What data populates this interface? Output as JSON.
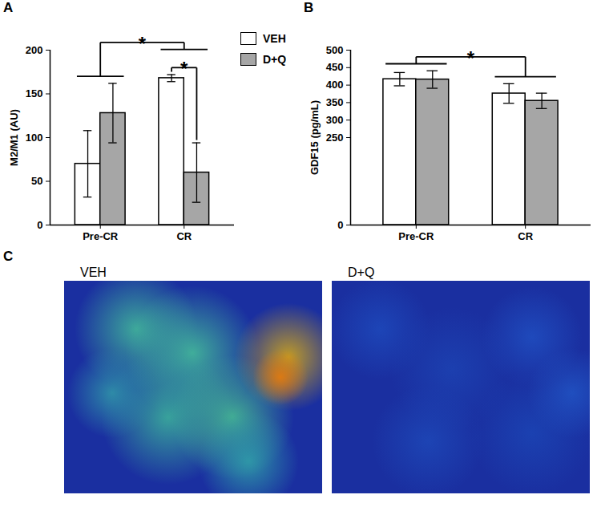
{
  "chart_data": [
    {
      "type": "bar",
      "title": "A",
      "categories": [
        "Pre-CR",
        "CR"
      ],
      "ylabel": "M2/M1 (AU)",
      "series": [
        {
          "name": "VEH",
          "color": "#ffffff",
          "values": [
            70,
            168
          ],
          "errors": [
            38,
            4
          ]
        },
        {
          "name": "D+Q",
          "color": "#a6a6a6",
          "values": [
            128,
            60
          ],
          "errors": [
            34,
            34
          ]
        }
      ],
      "ylim": [
        0,
        200
      ],
      "yticks": [
        0,
        50,
        100,
        150,
        200
      ],
      "legend": "right",
      "annotations": [
        {
          "text": "*",
          "category": "CR",
          "series": [
            "VEH",
            "D+Q"
          ]
        },
        {
          "text": "*",
          "categories": [
            "Pre-CR",
            "CR"
          ]
        }
      ]
    },
    {
      "type": "bar",
      "title": "B",
      "categories": [
        "Pre-CR",
        "CR"
      ],
      "ylabel": "GDF15 (pg/mL)",
      "series": [
        {
          "name": "VEH",
          "color": "#ffffff",
          "values": [
            417,
            376
          ],
          "errors": [
            19,
            28
          ]
        },
        {
          "name": "D+Q",
          "color": "#a6a6a6",
          "values": [
            416,
            355
          ],
          "errors": [
            25,
            22
          ]
        }
      ],
      "ylim": [
        0,
        500
      ],
      "yticks": [
        0,
        250,
        300,
        350,
        400,
        450,
        500
      ],
      "annotations": [
        {
          "text": "*",
          "categories": [
            "Pre-CR",
            "CR"
          ]
        }
      ]
    }
  ],
  "image_panel": {
    "title": "C",
    "images": [
      "VEH",
      "D+Q"
    ]
  }
}
